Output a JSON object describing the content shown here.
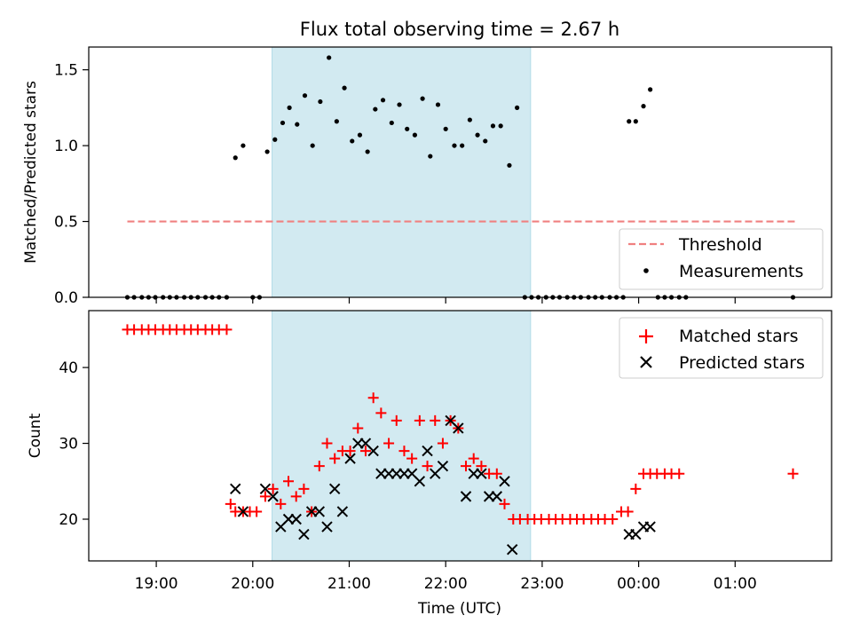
{
  "chart_data": [
    {
      "type": "scatter",
      "title": "Flux total observing time = 2.67 h",
      "xlabel": "",
      "ylabel": "Matched/Predicted stars",
      "ylim": [
        0,
        1.65
      ],
      "yticks": [
        {
          "value": 0.0,
          "label": "0.0"
        },
        {
          "value": 0.5,
          "label": "0.5"
        },
        {
          "value": 1.0,
          "label": "1.0"
        },
        {
          "value": 1.5,
          "label": "1.5"
        }
      ],
      "shaded_span": {
        "x0": 20.2,
        "x1": 22.88,
        "color": "#add8e6"
      },
      "threshold": {
        "name": "Threshold",
        "y": 0.5,
        "x0": 18.7,
        "x1": 25.65,
        "color": "#f08080"
      },
      "series": [
        {
          "name": "Measurements",
          "marker": "dot",
          "color": "#000000",
          "points": [
            [
              18.7,
              0
            ],
            [
              18.77,
              0
            ],
            [
              18.85,
              0
            ],
            [
              18.92,
              0
            ],
            [
              18.99,
              0
            ],
            [
              19.07,
              0
            ],
            [
              19.14,
              0
            ],
            [
              19.21,
              0
            ],
            [
              19.29,
              0
            ],
            [
              19.36,
              0
            ],
            [
              19.43,
              0
            ],
            [
              19.51,
              0
            ],
            [
              19.58,
              0
            ],
            [
              19.65,
              0
            ],
            [
              19.73,
              0
            ],
            [
              19.82,
              0.92
            ],
            [
              19.9,
              1.0
            ],
            [
              20.0,
              0
            ],
            [
              20.07,
              0
            ],
            [
              20.15,
              0.96
            ],
            [
              20.23,
              1.04
            ],
            [
              20.31,
              1.15
            ],
            [
              20.38,
              1.25
            ],
            [
              20.46,
              1.14
            ],
            [
              20.54,
              1.33
            ],
            [
              20.62,
              1.0
            ],
            [
              20.7,
              1.29
            ],
            [
              20.79,
              1.58
            ],
            [
              20.87,
              1.16
            ],
            [
              20.95,
              1.38
            ],
            [
              21.03,
              1.03
            ],
            [
              21.11,
              1.07
            ],
            [
              21.19,
              0.96
            ],
            [
              21.27,
              1.24
            ],
            [
              21.35,
              1.3
            ],
            [
              21.44,
              1.15
            ],
            [
              21.52,
              1.27
            ],
            [
              21.6,
              1.11
            ],
            [
              21.68,
              1.07
            ],
            [
              21.76,
              1.31
            ],
            [
              21.84,
              0.93
            ],
            [
              21.92,
              1.27
            ],
            [
              22.0,
              1.11
            ],
            [
              22.09,
              1.0
            ],
            [
              22.17,
              1.0
            ],
            [
              22.25,
              1.17
            ],
            [
              22.33,
              1.07
            ],
            [
              22.41,
              1.03
            ],
            [
              22.49,
              1.13
            ],
            [
              22.57,
              1.13
            ],
            [
              22.66,
              0.87
            ],
            [
              22.74,
              1.25
            ],
            [
              22.82,
              0
            ],
            [
              22.89,
              0
            ],
            [
              22.96,
              0
            ],
            [
              23.04,
              0
            ],
            [
              23.11,
              0
            ],
            [
              23.18,
              0
            ],
            [
              23.26,
              0
            ],
            [
              23.33,
              0
            ],
            [
              23.4,
              0
            ],
            [
              23.48,
              0
            ],
            [
              23.55,
              0
            ],
            [
              23.62,
              0
            ],
            [
              23.7,
              0
            ],
            [
              23.77,
              0
            ],
            [
              23.84,
              0
            ],
            [
              23.9,
              1.16
            ],
            [
              23.97,
              1.16
            ],
            [
              24.05,
              1.26
            ],
            [
              24.12,
              1.37
            ],
            [
              24.2,
              0
            ],
            [
              24.27,
              0
            ],
            [
              24.34,
              0
            ],
            [
              24.42,
              0
            ],
            [
              24.49,
              0
            ],
            [
              25.6,
              0
            ]
          ]
        }
      ],
      "legend": {
        "position": "lower-right",
        "entries": [
          "Threshold",
          "Measurements"
        ]
      }
    },
    {
      "type": "scatter",
      "xlabel": "Time (UTC)",
      "ylabel": "Count",
      "ylim": [
        14.5,
        47.5
      ],
      "xlim": [
        18.3,
        26.0
      ],
      "xticks": [
        {
          "value": 19,
          "label": "19:00"
        },
        {
          "value": 20,
          "label": "20:00"
        },
        {
          "value": 21,
          "label": "21:00"
        },
        {
          "value": 22,
          "label": "22:00"
        },
        {
          "value": 23,
          "label": "23:00"
        },
        {
          "value": 24,
          "label": "00:00"
        },
        {
          "value": 25,
          "label": "01:00"
        }
      ],
      "yticks": [
        {
          "value": 20,
          "label": "20"
        },
        {
          "value": 30,
          "label": "30"
        },
        {
          "value": 40,
          "label": "40"
        }
      ],
      "shaded_span": {
        "x0": 20.2,
        "x1": 22.88,
        "color": "#add8e6"
      },
      "series": [
        {
          "name": "Matched stars",
          "marker": "plus",
          "color": "#ff0000",
          "points": [
            [
              18.7,
              45
            ],
            [
              18.77,
              45
            ],
            [
              18.85,
              45
            ],
            [
              18.92,
              45
            ],
            [
              18.99,
              45
            ],
            [
              19.07,
              45
            ],
            [
              19.14,
              45
            ],
            [
              19.21,
              45
            ],
            [
              19.29,
              45
            ],
            [
              19.36,
              45
            ],
            [
              19.43,
              45
            ],
            [
              19.51,
              45
            ],
            [
              19.58,
              45
            ],
            [
              19.65,
              45
            ],
            [
              19.73,
              45
            ],
            [
              19.77,
              22
            ],
            [
              19.82,
              21
            ],
            [
              19.9,
              21
            ],
            [
              19.97,
              21
            ],
            [
              20.04,
              21
            ],
            [
              20.13,
              23
            ],
            [
              20.21,
              24
            ],
            [
              20.29,
              22
            ],
            [
              20.37,
              25
            ],
            [
              20.45,
              23
            ],
            [
              20.53,
              24
            ],
            [
              20.61,
              21
            ],
            [
              20.69,
              27
            ],
            [
              20.77,
              30
            ],
            [
              20.85,
              28
            ],
            [
              20.93,
              29
            ],
            [
              21.01,
              29
            ],
            [
              21.09,
              32
            ],
            [
              21.17,
              29
            ],
            [
              21.25,
              36
            ],
            [
              21.33,
              34
            ],
            [
              21.41,
              30
            ],
            [
              21.49,
              33
            ],
            [
              21.57,
              29
            ],
            [
              21.65,
              28
            ],
            [
              21.73,
              33
            ],
            [
              21.81,
              27
            ],
            [
              21.89,
              33
            ],
            [
              21.97,
              30
            ],
            [
              22.05,
              33
            ],
            [
              22.13,
              32
            ],
            [
              22.21,
              27
            ],
            [
              22.29,
              28
            ],
            [
              22.37,
              27
            ],
            [
              22.45,
              26
            ],
            [
              22.53,
              26
            ],
            [
              22.61,
              22
            ],
            [
              22.7,
              20
            ],
            [
              22.77,
              20
            ],
            [
              22.85,
              20
            ],
            [
              22.92,
              20
            ],
            [
              22.99,
              20
            ],
            [
              23.07,
              20
            ],
            [
              23.14,
              20
            ],
            [
              23.21,
              20
            ],
            [
              23.29,
              20
            ],
            [
              23.36,
              20
            ],
            [
              23.43,
              20
            ],
            [
              23.51,
              20
            ],
            [
              23.58,
              20
            ],
            [
              23.65,
              20
            ],
            [
              23.73,
              20
            ],
            [
              23.82,
              21
            ],
            [
              23.89,
              21
            ],
            [
              23.97,
              24
            ],
            [
              24.05,
              26
            ],
            [
              24.12,
              26
            ],
            [
              24.19,
              26
            ],
            [
              24.27,
              26
            ],
            [
              24.34,
              26
            ],
            [
              24.42,
              26
            ],
            [
              25.6,
              26
            ]
          ]
        },
        {
          "name": "Predicted stars",
          "marker": "x",
          "color": "#000000",
          "points": [
            [
              19.82,
              24
            ],
            [
              19.9,
              21
            ],
            [
              20.13,
              24
            ],
            [
              20.21,
              23
            ],
            [
              20.29,
              19
            ],
            [
              20.37,
              20
            ],
            [
              20.45,
              20
            ],
            [
              20.53,
              18
            ],
            [
              20.61,
              21
            ],
            [
              20.69,
              21
            ],
            [
              20.77,
              19
            ],
            [
              20.85,
              24
            ],
            [
              20.93,
              21
            ],
            [
              21.01,
              28
            ],
            [
              21.09,
              30
            ],
            [
              21.17,
              30
            ],
            [
              21.25,
              29
            ],
            [
              21.33,
              26
            ],
            [
              21.41,
              26
            ],
            [
              21.49,
              26
            ],
            [
              21.57,
              26
            ],
            [
              21.65,
              26
            ],
            [
              21.73,
              25
            ],
            [
              21.81,
              29
            ],
            [
              21.89,
              26
            ],
            [
              21.97,
              27
            ],
            [
              22.05,
              33
            ],
            [
              22.13,
              32
            ],
            [
              22.21,
              23
            ],
            [
              22.29,
              26
            ],
            [
              22.37,
              26
            ],
            [
              22.45,
              23
            ],
            [
              22.53,
              23
            ],
            [
              22.61,
              25
            ],
            [
              22.69,
              16
            ],
            [
              23.9,
              18
            ],
            [
              23.97,
              18
            ],
            [
              24.05,
              19
            ],
            [
              24.12,
              19
            ]
          ]
        }
      ],
      "legend": {
        "position": "upper-right",
        "entries": [
          "Matched stars",
          "Predicted stars"
        ]
      }
    }
  ]
}
